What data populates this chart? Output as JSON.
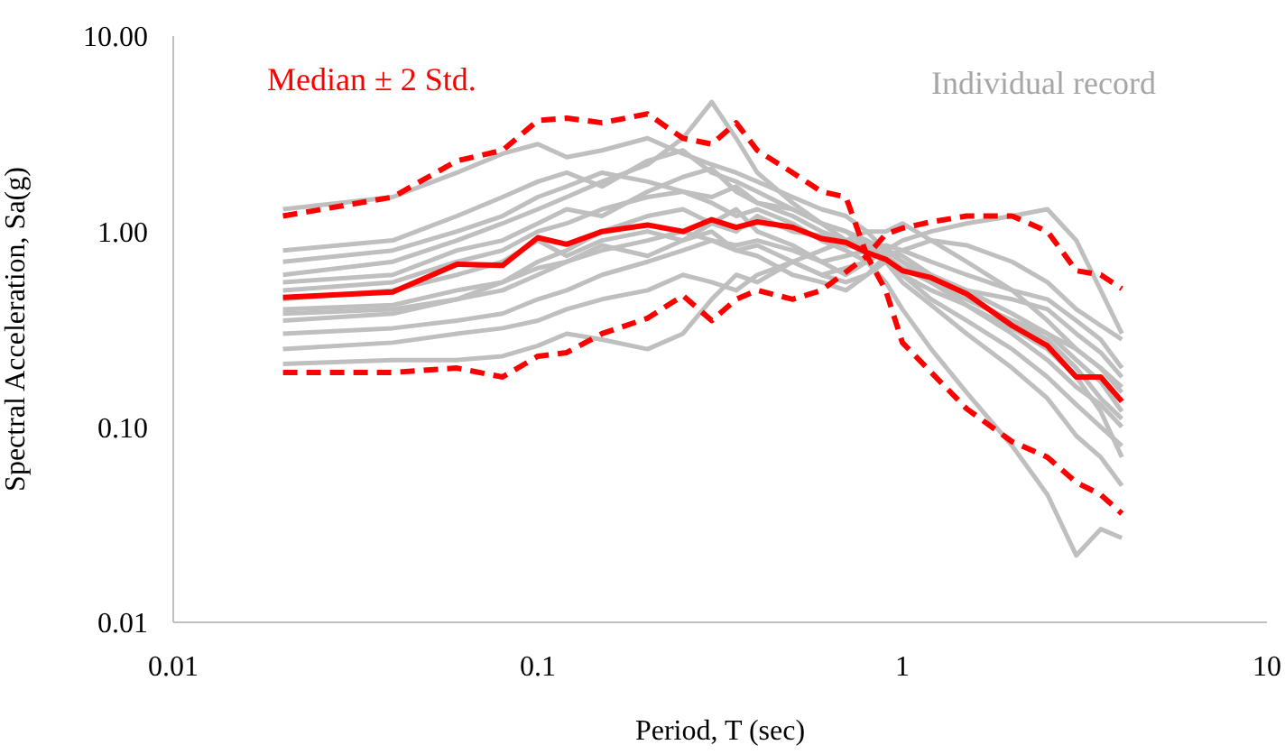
{
  "chart_data": {
    "type": "line",
    "xlabel": "Period, T (sec)",
    "ylabel": "Spectral Acceleration, Sa(g)",
    "annotations": [
      "Median ± 2 Std.",
      "Individual record"
    ],
    "log": "xy",
    "grid": false,
    "xlim": [
      0.01,
      10
    ],
    "xticks": [
      0.01,
      0.1,
      1,
      10
    ],
    "ylim": [
      0.01,
      10
    ],
    "yticks": [
      0.01,
      {
        "value": 0.1,
        "label": "0.10"
      },
      {
        "value": 1,
        "label": "1.00"
      },
      {
        "value": 10,
        "label": "10.00"
      }
    ],
    "x": [
      0.02,
      0.04,
      0.06,
      0.08,
      0.1,
      0.12,
      0.15,
      0.2,
      0.25,
      0.3,
      0.35,
      0.4,
      0.5,
      0.6,
      0.7,
      0.8,
      0.9,
      1,
      1.2,
      1.5,
      2,
      2.5,
      3,
      3.5,
      4
    ],
    "series": [
      {
        "color": "#bfbfbf",
        "values": [
          1.3,
          1.5,
          2.0,
          2.5,
          2.8,
          2.4,
          2.6,
          3.0,
          2.5,
          2.2,
          2.0,
          1.8,
          1.5,
          1.3,
          1.2,
          1.0,
          0.8,
          0.7,
          0.55,
          0.42,
          0.3,
          0.22,
          0.16,
          0.13,
          0.1
        ]
      },
      {
        "color": "#bfbfbf",
        "values": [
          0.6,
          0.7,
          0.9,
          1.1,
          1.3,
          1.5,
          1.8,
          2.2,
          3.0,
          4.6,
          3.0,
          2.0,
          1.4,
          1.1,
          0.9,
          0.8,
          0.7,
          0.6,
          0.45,
          0.35,
          0.25,
          0.18,
          0.13,
          0.1,
          0.08
        ]
      },
      {
        "color": "#bfbfbf",
        "values": [
          0.5,
          0.55,
          0.7,
          0.8,
          1.0,
          1.1,
          1.3,
          1.5,
          1.6,
          1.4,
          1.2,
          1.3,
          1.1,
          0.9,
          0.8,
          0.7,
          0.55,
          0.4,
          0.25,
          0.15,
          0.08,
          0.045,
          0.022,
          0.03,
          0.027
        ]
      },
      {
        "color": "#bfbfbf",
        "values": [
          0.21,
          0.22,
          0.22,
          0.23,
          0.26,
          0.3,
          0.28,
          0.25,
          0.3,
          0.45,
          0.6,
          0.55,
          0.7,
          0.8,
          0.9,
          1.0,
          1.0,
          1.1,
          0.9,
          0.7,
          0.5,
          0.35,
          0.25,
          0.2,
          0.15
        ]
      },
      {
        "color": "#bfbfbf",
        "values": [
          0.35,
          0.38,
          0.45,
          0.5,
          0.6,
          0.7,
          0.8,
          0.9,
          1.0,
          0.9,
          0.8,
          0.85,
          0.7,
          0.6,
          0.65,
          0.7,
          0.8,
          0.9,
          1.0,
          1.1,
          1.2,
          1.3,
          0.9,
          0.5,
          0.3
        ]
      },
      {
        "color": "#bfbfbf",
        "values": [
          0.7,
          0.8,
          1.0,
          1.2,
          1.5,
          1.7,
          2.0,
          1.8,
          1.6,
          1.5,
          1.7,
          1.4,
          1.2,
          1.0,
          0.9,
          0.85,
          0.75,
          0.65,
          0.55,
          0.45,
          0.35,
          0.28,
          0.2,
          0.14,
          0.11
        ]
      },
      {
        "color": "#bfbfbf",
        "values": [
          0.4,
          0.42,
          0.5,
          0.55,
          0.7,
          0.8,
          1.0,
          1.2,
          1.3,
          1.1,
          1.0,
          1.2,
          1.0,
          0.95,
          0.85,
          0.8,
          0.7,
          0.6,
          0.5,
          0.42,
          0.32,
          0.25,
          0.18,
          0.12,
          0.07
        ]
      },
      {
        "color": "#bfbfbf",
        "values": [
          0.3,
          0.32,
          0.35,
          0.38,
          0.45,
          0.5,
          0.6,
          0.7,
          0.8,
          0.9,
          0.85,
          0.9,
          0.8,
          0.7,
          0.75,
          0.8,
          0.85,
          0.8,
          0.7,
          0.6,
          0.5,
          0.45,
          0.35,
          0.28,
          0.2
        ]
      },
      {
        "color": "#bfbfbf",
        "values": [
          0.55,
          0.6,
          0.8,
          0.9,
          1.1,
          1.3,
          1.2,
          1.6,
          1.9,
          2.1,
          1.6,
          1.4,
          1.3,
          1.1,
          1.0,
          0.85,
          0.7,
          0.55,
          0.42,
          0.3,
          0.2,
          0.14,
          0.09,
          0.07,
          0.05
        ]
      },
      {
        "color": "#bfbfbf",
        "values": [
          0.45,
          0.5,
          0.6,
          0.7,
          0.9,
          0.75,
          0.9,
          1.0,
          0.9,
          1.1,
          1.3,
          1.0,
          0.85,
          0.7,
          0.6,
          0.7,
          0.8,
          0.75,
          0.6,
          0.5,
          0.38,
          0.3,
          0.25,
          0.2,
          0.16
        ]
      },
      {
        "color": "#bfbfbf",
        "values": [
          0.25,
          0.27,
          0.3,
          0.32,
          0.35,
          0.4,
          0.45,
          0.5,
          0.6,
          0.55,
          0.5,
          0.6,
          0.7,
          0.6,
          0.55,
          0.6,
          0.7,
          0.65,
          0.55,
          0.45,
          0.35,
          0.3,
          0.22,
          0.17,
          0.12
        ]
      },
      {
        "color": "#bfbfbf",
        "values": [
          0.8,
          0.9,
          1.2,
          1.5,
          1.8,
          2.0,
          1.7,
          2.3,
          2.6,
          2.0,
          1.8,
          1.6,
          1.3,
          1.1,
          1.0,
          0.9,
          0.8,
          0.7,
          0.58,
          0.5,
          0.45,
          0.4,
          0.3,
          0.24,
          0.18
        ]
      },
      {
        "color": "#bfbfbf",
        "values": [
          0.38,
          0.4,
          0.45,
          0.55,
          0.65,
          0.7,
          0.85,
          0.75,
          0.9,
          1.0,
          0.8,
          0.75,
          0.6,
          0.55,
          0.5,
          0.6,
          0.75,
          0.8,
          0.9,
          0.85,
          0.7,
          0.55,
          0.4,
          0.33,
          0.28
        ]
      },
      {
        "color": "#ff0000",
        "line_style": "dashed",
        "values": [
          0.19,
          0.19,
          0.2,
          0.18,
          0.23,
          0.24,
          0.3,
          0.36,
          0.47,
          0.35,
          0.45,
          0.5,
          0.45,
          0.5,
          0.62,
          0.75,
          0.5,
          0.27,
          0.19,
          0.124,
          0.084,
          0.07,
          0.052,
          0.045,
          0.036
        ]
      },
      {
        "color": "#ff0000",
        "line_style": "dashed",
        "values": [
          1.2,
          1.5,
          2.3,
          2.6,
          3.7,
          3.8,
          3.6,
          4.0,
          3.0,
          2.8,
          3.6,
          2.6,
          2.0,
          1.6,
          1.5,
          0.75,
          0.97,
          1.04,
          1.12,
          1.2,
          1.2,
          1.0,
          0.63,
          0.6,
          0.51
        ]
      },
      {
        "color": "#ff0000",
        "line_style": "solid",
        "values": [
          0.46,
          0.49,
          0.68,
          0.67,
          0.93,
          0.86,
          1.0,
          1.08,
          1.0,
          1.15,
          1.05,
          1.12,
          1.05,
          0.92,
          0.88,
          0.78,
          0.72,
          0.63,
          0.58,
          0.48,
          0.33,
          0.26,
          0.18,
          0.18,
          0.135
        ]
      }
    ]
  }
}
